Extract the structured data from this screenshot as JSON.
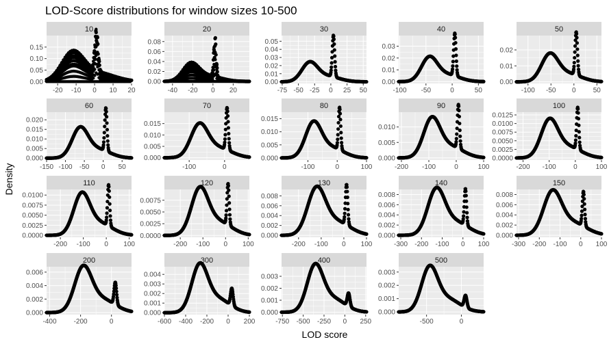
{
  "title": "LOD-Score distributions for window sizes 10-500",
  "xlabel": "LOD score",
  "ylabel": "Density",
  "chart_data": {
    "type": "scatter",
    "title": "LOD-Score distributions for window sizes 10-500",
    "xlabel": "LOD score",
    "ylabel": "Density",
    "grid": true,
    "colors": {
      "panel_bg": "#ebebeb",
      "grid_major": "#ffffff",
      "strip_bg": "#d9d9d9",
      "points": "#000000"
    },
    "facets": [
      {
        "label": "10",
        "xlim": [
          -26,
          20
        ],
        "ylim": [
          -0.008,
          0.2
        ],
        "xticks": [
          -20,
          -10,
          0,
          10,
          20
        ],
        "yticks": [
          0.0,
          0.05,
          0.1,
          0.15
        ],
        "ytick_labels": [
          "0.00",
          "0.05",
          "0.10",
          "0.15"
        ],
        "peak1": {
          "center": -12,
          "width": 6,
          "height": 0.12
        },
        "peak2": {
          "center": 1,
          "width": 0.9,
          "height": 0.18
        },
        "comb": true
      },
      {
        "label": "20",
        "xlim": [
          -48,
          36
        ],
        "ylim": [
          -0.004,
          0.092
        ],
        "xticks": [
          -40,
          -20,
          0,
          20
        ],
        "yticks": [
          0.0,
          0.02,
          0.04,
          0.06,
          0.08
        ],
        "ytick_labels": [
          "0.00",
          "0.02",
          "0.04",
          "0.06",
          "0.08"
        ],
        "peak1": {
          "center": -22,
          "width": 8,
          "height": 0.034
        },
        "peak2": {
          "center": 2,
          "width": 1.2,
          "height": 0.082
        },
        "comb": true
      },
      {
        "label": "30",
        "xlim": [
          -76,
          55
        ],
        "ylim": [
          -0.002,
          0.057
        ],
        "xticks": [
          -75,
          -50,
          -25,
          0,
          25,
          50
        ],
        "yticks": [
          0.0,
          0.01,
          0.02,
          0.03,
          0.04,
          0.05
        ],
        "ytick_labels": [
          "0.00",
          "0.01",
          "0.02",
          "0.03",
          "0.04",
          "0.05"
        ],
        "peak1": {
          "center": -33,
          "width": 12,
          "height": 0.022
        },
        "peak2": {
          "center": 4,
          "width": 1.8,
          "height": 0.051
        },
        "comb": false
      },
      {
        "label": "40",
        "xlim": [
          -102,
          60
        ],
        "ylim": [
          -0.0015,
          0.039
        ],
        "xticks": [
          -100,
          -50,
          0,
          50
        ],
        "yticks": [
          0.0,
          0.01,
          0.02,
          0.03
        ],
        "ytick_labels": [
          "0.00",
          "0.01",
          "0.02",
          "0.03"
        ],
        "peak1": {
          "center": -44,
          "width": 15,
          "height": 0.019
        },
        "peak2": {
          "center": 5,
          "width": 2.2,
          "height": 0.036
        },
        "comb": false
      },
      {
        "label": "50",
        "xlim": [
          -125,
          60
        ],
        "ylim": [
          -0.001,
          0.029
        ],
        "xticks": [
          -100,
          -50,
          0,
          50
        ],
        "yticks": [
          0.0,
          0.01,
          0.02
        ],
        "ytick_labels": [
          "0.00",
          "0.01",
          "0.02"
        ],
        "peak1": {
          "center": -53,
          "width": 18,
          "height": 0.016
        },
        "peak2": {
          "center": 5,
          "width": 2.6,
          "height": 0.027
        },
        "comb": false
      },
      {
        "label": "60",
        "xlim": [
          -150,
          75
        ],
        "ylim": [
          -0.001,
          0.024
        ],
        "xticks": [
          -150,
          -100,
          -50,
          0,
          50
        ],
        "yticks": [
          0.0,
          0.005,
          0.01,
          0.015,
          0.02
        ],
        "ytick_labels": [
          "0.000",
          "0.005",
          "0.010",
          "0.015",
          "0.020"
        ],
        "peak1": {
          "center": -62,
          "width": 21,
          "height": 0.0145
        },
        "peak2": {
          "center": 7,
          "width": 3.0,
          "height": 0.0225
        },
        "comb": false
      },
      {
        "label": "70",
        "xlim": [
          -170,
          70
        ],
        "ylim": [
          -0.001,
          0.02
        ],
        "xticks": [
          -100,
          0
        ],
        "yticks": [
          0.0,
          0.005,
          0.01,
          0.015
        ],
        "ytick_labels": [
          "0.000",
          "0.005",
          "0.010",
          "0.015"
        ],
        "peak1": {
          "center": -72,
          "width": 24,
          "height": 0.0135
        },
        "peak2": {
          "center": 7,
          "width": 3.4,
          "height": 0.0185
        },
        "comb": false
      },
      {
        "label": "80",
        "xlim": [
          -190,
          100
        ],
        "ylim": [
          -0.0008,
          0.0175
        ],
        "xticks": [
          -100,
          0,
          100
        ],
        "yticks": [
          0.0,
          0.005,
          0.01,
          0.015
        ],
        "ytick_labels": [
          "0.000",
          "0.005",
          "0.010",
          "0.015"
        ],
        "peak1": {
          "center": -82,
          "width": 27,
          "height": 0.0125
        },
        "peak2": {
          "center": 8,
          "width": 3.8,
          "height": 0.0162
        },
        "comb": false
      },
      {
        "label": "90",
        "xlim": [
          -210,
          100
        ],
        "ylim": [
          -0.0007,
          0.0148
        ],
        "xticks": [
          -200,
          -100,
          0,
          100
        ],
        "yticks": [
          0.0,
          0.005,
          0.01
        ],
        "ytick_labels": [
          "0.000",
          "0.005",
          "0.010"
        ],
        "peak1": {
          "center": -90,
          "width": 30,
          "height": 0.0118
        },
        "peak2": {
          "center": 8,
          "width": 4.0,
          "height": 0.0142
        },
        "comb": false
      },
      {
        "label": "100",
        "xlim": [
          -225,
          100
        ],
        "ylim": [
          -0.0006,
          0.0133
        ],
        "xticks": [
          -200,
          -100,
          0,
          100
        ],
        "yticks": [
          0.0,
          0.0025,
          0.005,
          0.0075,
          0.01,
          0.0125
        ],
        "ytick_labels": [
          "0.0000",
          "0.0025",
          "0.0050",
          "0.0075",
          "0.0100",
          "0.0125"
        ],
        "peak1": {
          "center": -100,
          "width": 32,
          "height": 0.0102
        },
        "peak2": {
          "center": 9,
          "width": 4.2,
          "height": 0.0122
        },
        "comb": false
      },
      {
        "label": "110",
        "xlim": [
          -260,
          110
        ],
        "ylim": [
          -0.0005,
          0.0114
        ],
        "xticks": [
          -200,
          -100,
          0,
          100
        ],
        "yticks": [
          0.0,
          0.0025,
          0.005,
          0.0075,
          0.01
        ],
        "ytick_labels": [
          "0.0000",
          "0.0025",
          "0.0050",
          "0.0075",
          "0.0100"
        ],
        "peak1": {
          "center": -108,
          "width": 35,
          "height": 0.0095
        },
        "peak2": {
          "center": 10,
          "width": 4.6,
          "height": 0.0102
        },
        "comb": false
      },
      {
        "label": "120",
        "xlim": [
          -270,
          105
        ],
        "ylim": [
          -0.0004,
          0.0098
        ],
        "xticks": [
          -200,
          -100,
          0,
          100
        ],
        "yticks": [
          0.0,
          0.0025,
          0.005,
          0.0075
        ],
        "ytick_labels": [
          "0.0000",
          "0.0025",
          "0.0050",
          "0.0075"
        ],
        "peak1": {
          "center": -115,
          "width": 37,
          "height": 0.0092
        },
        "peak2": {
          "center": 11,
          "width": 4.8,
          "height": 0.0088
        },
        "comb": false
      },
      {
        "label": "130",
        "xlim": [
          -275,
          100
        ],
        "ylim": [
          -0.0004,
          0.0093
        ],
        "xticks": [
          -200,
          -100,
          0,
          100
        ],
        "yticks": [
          0.0,
          0.002,
          0.004,
          0.006,
          0.008
        ],
        "ytick_labels": [
          "0.000",
          "0.002",
          "0.004",
          "0.006",
          "0.008"
        ],
        "peak1": {
          "center": -122,
          "width": 39,
          "height": 0.0088
        },
        "peak2": {
          "center": 12,
          "width": 5.0,
          "height": 0.0082
        },
        "comb": false
      },
      {
        "label": "140",
        "xlim": [
          -310,
          100
        ],
        "ylim": [
          -0.0004,
          0.009
        ],
        "xticks": [
          -300,
          -200,
          -100,
          0,
          100
        ],
        "yticks": [
          0.0,
          0.002,
          0.004,
          0.006,
          0.008
        ],
        "ytick_labels": [
          "0.000",
          "0.002",
          "0.004",
          "0.006",
          "0.008"
        ],
        "peak1": {
          "center": -130,
          "width": 41,
          "height": 0.0083
        },
        "peak2": {
          "center": 12,
          "width": 5.2,
          "height": 0.0072
        },
        "comb": false
      },
      {
        "label": "150",
        "xlim": [
          -310,
          100
        ],
        "ylim": [
          -0.0004,
          0.009
        ],
        "xticks": [
          -300,
          -200,
          -100,
          0,
          100
        ],
        "yticks": [
          0.0,
          0.002,
          0.004,
          0.006,
          0.008
        ],
        "ytick_labels": [
          "0.000",
          "0.002",
          "0.004",
          "0.006",
          "0.008"
        ],
        "peak1": {
          "center": -138,
          "width": 43,
          "height": 0.0079
        },
        "peak2": {
          "center": 13,
          "width": 5.4,
          "height": 0.0068
        },
        "comb": false
      },
      {
        "label": "200",
        "xlim": [
          -420,
          130
        ],
        "ylim": [
          -0.0003,
          0.0068
        ],
        "xticks": [
          -400,
          -200,
          0
        ],
        "yticks": [
          0.0,
          0.002,
          0.004,
          0.006
        ],
        "ytick_labels": [
          "0.000",
          "0.002",
          "0.004",
          "0.006"
        ],
        "peak1": {
          "center": -185,
          "width": 55,
          "height": 0.0062
        },
        "peak2": {
          "center": 25,
          "width": 8.0,
          "height": 0.0033
        },
        "comb": false
      },
      {
        "label": "300",
        "xlim": [
          -600,
          200
        ],
        "ylim": [
          -0.0002,
          0.0048
        ],
        "xticks": [
          -600,
          -400,
          -200,
          0,
          200
        ],
        "yticks": [
          0.0,
          0.001,
          0.002,
          0.003,
          0.004
        ],
        "ytick_labels": [
          "0.000",
          "0.001",
          "0.002",
          "0.003",
          "0.004"
        ],
        "peak1": {
          "center": -270,
          "width": 75,
          "height": 0.0046
        },
        "peak2": {
          "center": 35,
          "width": 12,
          "height": 0.0018
        },
        "comb": false
      },
      {
        "label": "400",
        "xlim": [
          -760,
          260
        ],
        "ylim": [
          -0.0002,
          0.0038
        ],
        "xticks": [
          -750,
          -500,
          -250,
          0,
          250
        ],
        "yticks": [
          0.0,
          0.001,
          0.002,
          0.003
        ],
        "ytick_labels": [
          "0.000",
          "0.001",
          "0.002",
          "0.003"
        ],
        "peak1": {
          "center": -360,
          "width": 95,
          "height": 0.0036
        },
        "peak2": {
          "center": 45,
          "width": 16,
          "height": 0.0011
        },
        "comb": false
      },
      {
        "label": "500",
        "xlim": [
          -900,
          320
        ],
        "ylim": [
          -0.0002,
          0.0034
        ],
        "xticks": [
          -500,
          0
        ],
        "yticks": [
          0.0,
          0.001,
          0.002,
          0.003
        ],
        "ytick_labels": [
          "0.000",
          "0.001",
          "0.002",
          "0.003"
        ],
        "peak1": {
          "center": -460,
          "width": 115,
          "height": 0.0031
        },
        "peak2": {
          "center": 60,
          "width": 20,
          "height": 0.0009
        },
        "comb": false
      }
    ]
  }
}
